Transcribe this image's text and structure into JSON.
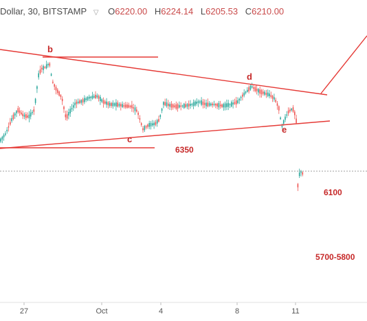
{
  "legend": {
    "symbol": "Dollar, 30, BITSTAMP",
    "caret": "▽",
    "open_label": "O",
    "open": "6220.00",
    "high_label": "H",
    "high": "6224.14",
    "low_label": "L",
    "low": "6205.53",
    "close_label": "C",
    "close": "6210.00"
  },
  "chart_data": {
    "type": "candlestick",
    "x_ticks": [
      "27",
      "Oct",
      "4",
      "8",
      "11"
    ],
    "wave_labels": [
      "b",
      "c",
      "d",
      "e"
    ],
    "level_labels": [
      "6350",
      "6100",
      "5700-5800"
    ],
    "colors": {
      "up": "#26a69a",
      "down": "#ef5350",
      "annotation": "#e53935",
      "label": "#c62828",
      "price_line": "#9e9e9e"
    }
  }
}
